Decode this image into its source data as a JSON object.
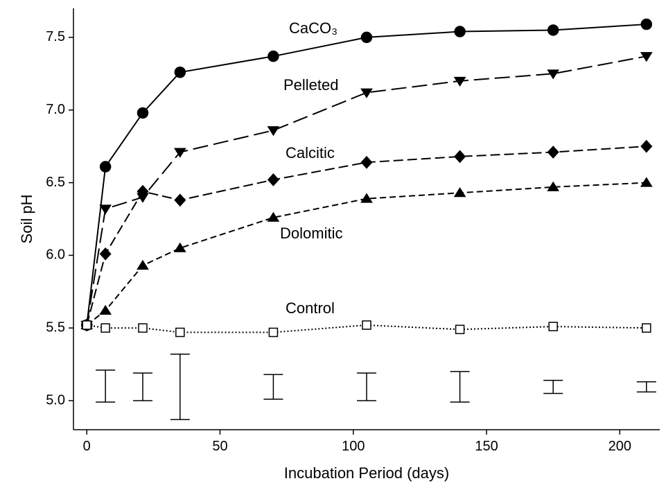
{
  "chart_data": {
    "type": "line",
    "x_label": "Incubation Period (days)",
    "y_label": "Soil pH",
    "x": [
      0,
      7,
      21,
      35,
      70,
      105,
      140,
      175,
      210
    ],
    "series": [
      {
        "name": "CaCO₃",
        "color": "#000000",
        "marker": "circle",
        "line_style": "solid",
        "values": [
          5.52,
          6.61,
          6.98,
          7.26,
          7.37,
          7.5,
          7.54,
          7.55,
          7.59
        ]
      },
      {
        "name": "Pelleted",
        "color": "#000000",
        "marker": "triangle-down",
        "line_style": "long-dash",
        "values": [
          5.52,
          6.32,
          6.4,
          6.71,
          6.86,
          7.12,
          7.2,
          7.25,
          7.37
        ]
      },
      {
        "name": "Calcitic",
        "color": "#000000",
        "marker": "diamond",
        "line_style": "dash",
        "values": [
          5.52,
          6.01,
          6.44,
          6.38,
          6.52,
          6.64,
          6.68,
          6.71,
          6.75
        ]
      },
      {
        "name": "Dolomitic",
        "color": "#000000",
        "marker": "triangle-up",
        "line_style": "short-dash",
        "values": [
          5.52,
          5.62,
          5.93,
          6.05,
          6.26,
          6.39,
          6.43,
          6.47,
          6.5
        ]
      },
      {
        "name": "Control",
        "color": "#000000",
        "marker": "open-square",
        "line_style": "dotted",
        "values": [
          5.52,
          5.5,
          5.5,
          5.47,
          5.47,
          5.52,
          5.49,
          5.51,
          5.5
        ]
      }
    ],
    "error_bars": {
      "x": [
        7,
        21,
        35,
        70,
        105,
        140,
        175,
        210
      ],
      "low": [
        4.99,
        5.0,
        4.87,
        5.01,
        5.0,
        4.99,
        5.05,
        5.06
      ],
      "high": [
        5.21,
        5.19,
        5.32,
        5.18,
        5.19,
        5.2,
        5.14,
        5.13
      ]
    },
    "xlim": [
      -5,
      215
    ],
    "ylim": [
      4.8,
      7.7
    ],
    "xticks": [
      0,
      50,
      100,
      150,
      200
    ],
    "yticks": [
      {
        "value": 5,
        "label": "5.0"
      },
      {
        "value": 5.5,
        "label": "5.5"
      },
      {
        "value": 6,
        "label": "6.0"
      },
      {
        "value": 6.5,
        "label": "6.5"
      },
      {
        "value": 7,
        "label": "7.0"
      },
      {
        "value": 7.5,
        "label": "7.5"
      }
    ],
    "grid": false
  }
}
